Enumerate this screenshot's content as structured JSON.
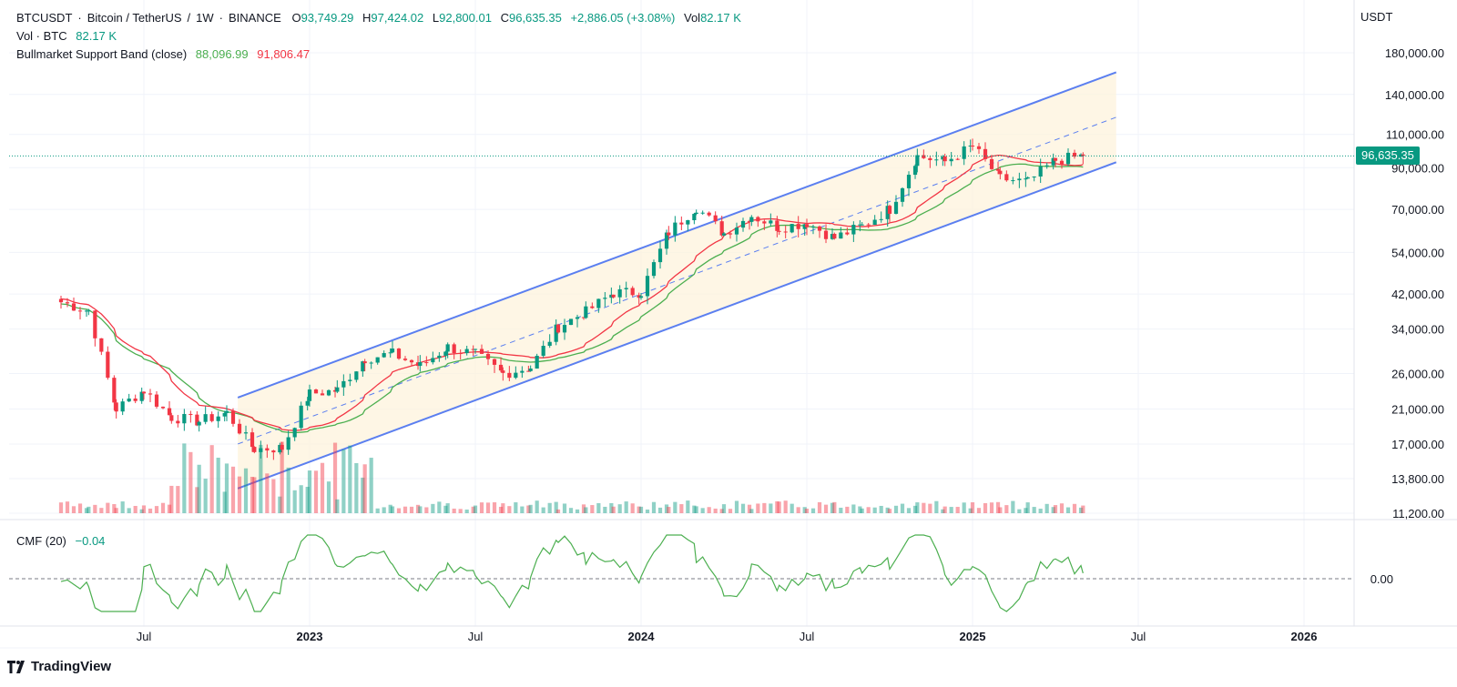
{
  "header": {
    "symbol": "BTCUSDT",
    "description": "Bitcoin / TetherUS",
    "interval": "1W",
    "exchange": "BINANCE",
    "ohlc": {
      "open_label": "O",
      "open": "93,749.29",
      "high_label": "H",
      "high": "97,424.02",
      "low_label": "L",
      "low": "92,800.01",
      "close_label": "C",
      "close": "96,635.35",
      "change": "+2,886.05 (+3.08%)",
      "vol_label": "Vol",
      "vol": "82.17 K"
    }
  },
  "indicators": {
    "volume": {
      "label": "Vol · BTC",
      "value": "82.17 K"
    },
    "bull_band": {
      "label": "Bullmarket Support Band (close)",
      "value1": "88,096.99",
      "value2": "91,806.47"
    },
    "cmf": {
      "label": "CMF (20)",
      "value": "−0.04"
    }
  },
  "price_axis": {
    "currency": "USDT",
    "ticks": [
      "180,000.00",
      "140,000.00",
      "110,000.00",
      "90,000.00",
      "70,000.00",
      "54,000.00",
      "42,000.00",
      "34,000.00",
      "26,000.00",
      "21,000.00",
      "17,000.00",
      "13,800.00",
      "11,200.00"
    ],
    "current_price": "96,635.35",
    "cmf_tick": "0.00"
  },
  "time_axis": {
    "labels": [
      "Jul",
      "2023",
      "Jul",
      "2024",
      "Jul",
      "2025",
      "Jul",
      "2026"
    ]
  },
  "branding": {
    "name": "TradingView"
  },
  "colors": {
    "up": "#089981",
    "down": "#f23645",
    "channel": "#5b7ff0",
    "band_green": "#4caf50",
    "band_red": "#f23645",
    "channel_fill": "#fdf3dc"
  },
  "chart_data": {
    "type": "candlestick",
    "interval": "1W",
    "scale": "log",
    "y_range": [
      11200,
      180000
    ],
    "x_range": [
      "2022-04",
      "2026-02"
    ],
    "candles_close_approx": [
      {
        "date": "2022-04",
        "close": 40000
      },
      {
        "date": "2022-05",
        "close": 38000
      },
      {
        "date": "2022-06",
        "close": 21000
      },
      {
        "date": "2022-07",
        "close": 23500
      },
      {
        "date": "2022-08",
        "close": 20000
      },
      {
        "date": "2022-09",
        "close": 19500
      },
      {
        "date": "2022-10",
        "close": 20500
      },
      {
        "date": "2022-11",
        "close": 16500
      },
      {
        "date": "2022-12",
        "close": 16600
      },
      {
        "date": "2023-01",
        "close": 23000
      },
      {
        "date": "2023-02",
        "close": 23500
      },
      {
        "date": "2023-03",
        "close": 28500
      },
      {
        "date": "2023-04",
        "close": 29300
      },
      {
        "date": "2023-05",
        "close": 27200
      },
      {
        "date": "2023-06",
        "close": 30500
      },
      {
        "date": "2023-07",
        "close": 29200
      },
      {
        "date": "2023-08",
        "close": 26000
      },
      {
        "date": "2023-09",
        "close": 27000
      },
      {
        "date": "2023-10",
        "close": 34500
      },
      {
        "date": "2023-11",
        "close": 37700
      },
      {
        "date": "2023-12",
        "close": 42300
      },
      {
        "date": "2024-01",
        "close": 42500
      },
      {
        "date": "2024-02",
        "close": 61000
      },
      {
        "date": "2024-03",
        "close": 71000
      },
      {
        "date": "2024-04",
        "close": 60600
      },
      {
        "date": "2024-05",
        "close": 67500
      },
      {
        "date": "2024-06",
        "close": 62700
      },
      {
        "date": "2024-07",
        "close": 64600
      },
      {
        "date": "2024-08",
        "close": 58900
      },
      {
        "date": "2024-09",
        "close": 63300
      },
      {
        "date": "2024-10",
        "close": 70200
      },
      {
        "date": "2024-11",
        "close": 96400
      },
      {
        "date": "2024-12",
        "close": 93400
      },
      {
        "date": "2025-01",
        "close": 102400
      },
      {
        "date": "2025-02",
        "close": 84300
      },
      {
        "date": "2025-03",
        "close": 82500
      },
      {
        "date": "2025-04",
        "close": 94200
      },
      {
        "date": "2025-05",
        "close": 96635
      }
    ],
    "series": [
      {
        "name": "Bullmarket Support Band (close)",
        "last_values": [
          88096.99,
          91806.47
        ]
      },
      {
        "name": "CMF (20)",
        "last_value": -0.04
      }
    ]
  }
}
